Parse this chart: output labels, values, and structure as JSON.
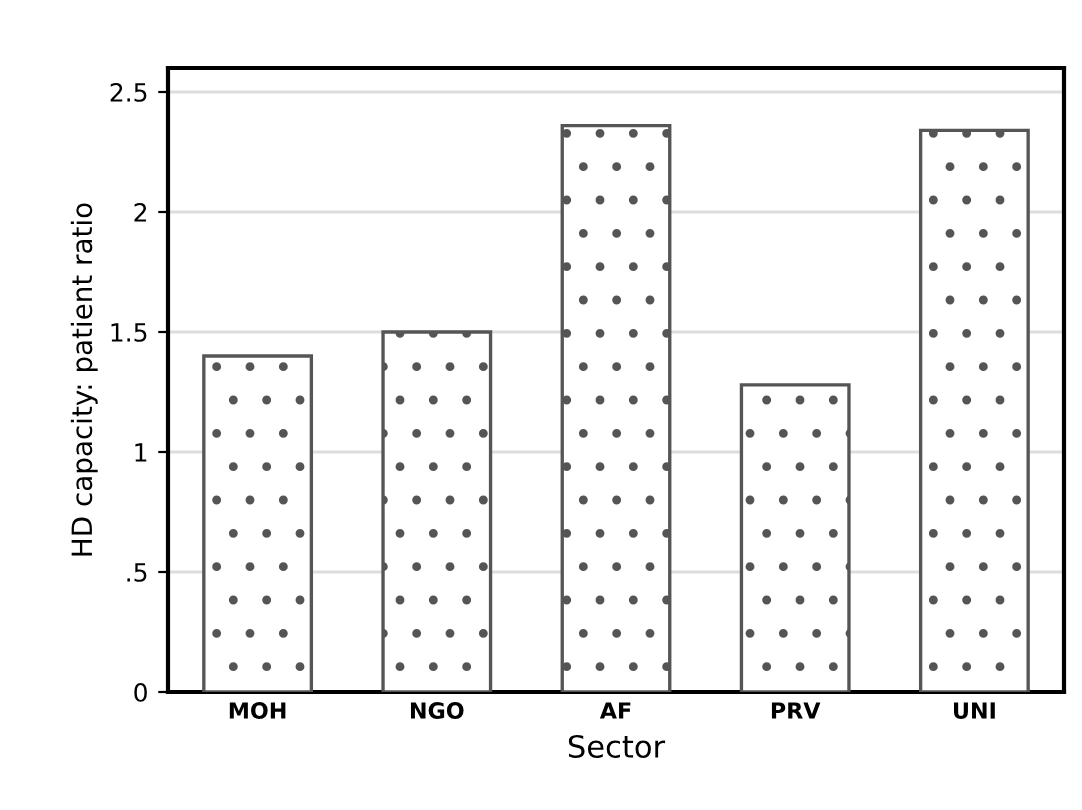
{
  "chart_data": {
    "type": "bar",
    "xlabel": "Sector",
    "ylabel": "HD capacity: patient ratio",
    "categories": [
      "MOH",
      "NGO",
      "AF",
      "PRV",
      "UNI"
    ],
    "values": [
      1.4,
      1.5,
      2.36,
      1.28,
      2.34
    ],
    "color": "#555555",
    "ylim": [
      0,
      2.6
    ],
    "yticks": [
      0,
      {
        "value": 0.5,
        "label": ".5"
      },
      1,
      1.5,
      2,
      2.5
    ],
    "grid": "y"
  }
}
